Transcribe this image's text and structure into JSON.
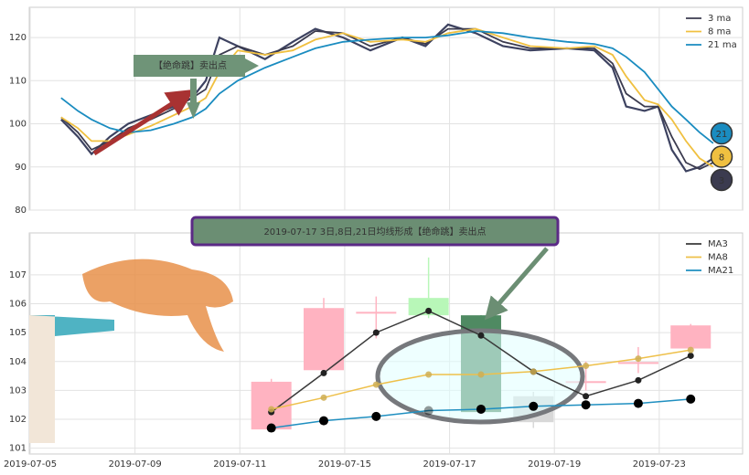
{
  "chart_data": [
    {
      "type": "line",
      "x": [
        0.59,
        0.91,
        1.17,
        1.52,
        1.87,
        2.3,
        2.74,
        3.09,
        3.35,
        3.61,
        3.96,
        4.48,
        5.01,
        5.44,
        5.97,
        6.49,
        7.1,
        7.54,
        7.97,
        8.5,
        9.02,
        9.54,
        10.24,
        10.76,
        11.11,
        11.37,
        11.72,
        11.98,
        12.24,
        12.51,
        12.77,
        13.03
      ],
      "values": [
        101,
        97,
        93,
        97,
        100,
        102,
        104,
        106,
        110,
        120,
        118,
        115,
        119,
        122,
        120,
        117,
        120,
        118,
        123,
        121,
        118,
        117,
        117.5,
        117,
        113,
        104,
        103,
        104,
        94,
        89,
        90,
        92
      ],
      "color": "#3d4260",
      "series": [
        {
          "name": "3 ma",
          "color": "#3b3b4f",
          "values": [
            101.5,
            98,
            94,
            96,
            99,
            101,
            103.5,
            106,
            108,
            116,
            118,
            116,
            118,
            121.5,
            121,
            118,
            120,
            118.5,
            122,
            122,
            119,
            117.5,
            117.5,
            117.5,
            114,
            107,
            104,
            104,
            97,
            91,
            89.5,
            91
          ]
        },
        {
          "name": "8 ma",
          "color": "#f0c040",
          "values": [
            101.5,
            99,
            96,
            96,
            97.5,
            99.5,
            102,
            104,
            106,
            112,
            117,
            116,
            117,
            119.5,
            121,
            119,
            119.5,
            119,
            121,
            122,
            120,
            118,
            117.5,
            118,
            116,
            111,
            105.5,
            104.5,
            101,
            96,
            92,
            90
          ]
        },
        {
          "name": "21 ma",
          "color": "#1a8cc0",
          "values": [
            106,
            103,
            101,
            99,
            98,
            98.5,
            100,
            101.5,
            103.5,
            107,
            110,
            113,
            115.5,
            117.5,
            119,
            119.5,
            120,
            120,
            120.5,
            121.5,
            121,
            120,
            119,
            118.5,
            117.5,
            115.5,
            112,
            108,
            104,
            101,
            98,
            95.5
          ]
        }
      ],
      "end_labels": [
        "21",
        "8",
        "3"
      ],
      "annotation": "【绝命跳】卖出点",
      "xlim": [
        0,
        13.59
      ],
      "xticks": [
        0,
        2,
        4,
        6,
        8,
        10,
        12
      ],
      "ylim": [
        80,
        127
      ],
      "yticks": [
        80,
        90,
        100,
        110,
        120
      ],
      "grid": true,
      "legend": "upper right"
    },
    {
      "type": "candlestick",
      "x": [
        4.6,
        5.6,
        6.6,
        7.6,
        8.6,
        9.6,
        10.6,
        11.6,
        12.6
      ],
      "open": [
        101.65,
        103.7,
        105.7,
        106.2,
        105.6,
        102.8,
        103.3,
        103.95,
        104.45
      ],
      "high": [
        103.4,
        106.2,
        106.25,
        107.6,
        105.6,
        102.95,
        104.0,
        104.5,
        105.3
      ],
      "low": [
        101.6,
        103.7,
        104.8,
        105.5,
        102.2,
        101.7,
        103.0,
        103.6,
        104.4
      ],
      "close": [
        103.3,
        105.85,
        105.72,
        105.6,
        102.25,
        101.9,
        103.32,
        103.98,
        105.25
      ],
      "colors": [
        "#ffb3c1",
        "#ffb3c1",
        "#ffb3c1",
        "#b8f7b8",
        "#4f8a62",
        "#d8d8d8",
        "#ffb3c1",
        "#ffb3c1",
        "#ffb3c1"
      ],
      "series": [
        {
          "name": "MA3",
          "color": "#3a3a3a",
          "values": [
            102.25,
            103.6,
            105.0,
            105.75,
            104.9,
            103.65,
            102.8,
            103.35,
            104.2
          ]
        },
        {
          "name": "MA8",
          "color": "#eec04a",
          "values": [
            102.35,
            102.75,
            103.2,
            103.55,
            103.55,
            103.65,
            103.85,
            104.1,
            104.4
          ]
        },
        {
          "name": "MA21",
          "color": "#1f8fc0",
          "values": [
            101.7,
            101.95,
            102.1,
            102.3,
            102.35,
            102.45,
            102.5,
            102.55,
            102.7
          ]
        }
      ],
      "annotation": "2019-07-17 3日,8日,21日均线形成【绝命跳】卖出点",
      "xlim": [
        0,
        13.59
      ],
      "xticks": [
        {
          "value": 0,
          "label": "2019-07-05"
        },
        {
          "value": 2,
          "label": "2019-07-09"
        },
        {
          "value": 4,
          "label": "2019-07-11"
        },
        {
          "value": 6,
          "label": "2019-07-15"
        },
        {
          "value": 8,
          "label": "2019-07-17"
        },
        {
          "value": 10,
          "label": "2019-07-19"
        },
        {
          "value": 12,
          "label": "2019-07-23"
        }
      ],
      "ylim": [
        100.8,
        108.45
      ],
      "yticks": [
        101,
        102,
        103,
        104,
        105,
        106,
        107
      ],
      "grid": true,
      "legend": "upper right"
    }
  ]
}
